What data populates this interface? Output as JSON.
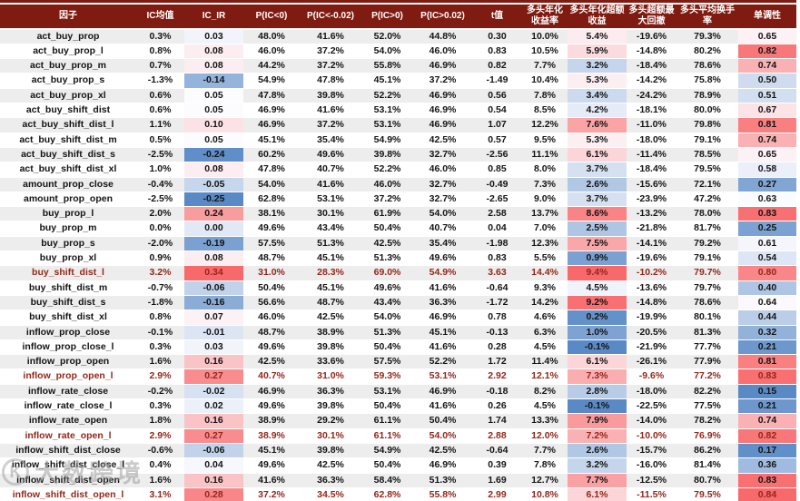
{
  "watermark": {
    "logo": "K",
    "text": "大数跨境"
  },
  "colors": {
    "header_bg": "#801b11",
    "header_text": "#ffffff",
    "stripe": "#ededed",
    "row_white": "#ffffff",
    "body_text": "#141414",
    "highlight_text": "#93261a",
    "scale_min_blue": "#5a8ac6",
    "scale_mid_white": "#fcfcff",
    "scale_max_red": "#f8696b"
  },
  "table": {
    "columns": [
      {
        "key": "factor",
        "label": "因子",
        "colorscale": false
      },
      {
        "key": "ic_mean",
        "label": "IC均值",
        "colorscale": false
      },
      {
        "key": "ic_ir",
        "label": "IC_IR",
        "colorscale": true
      },
      {
        "key": "p_ic_lt0",
        "label": "P(IC<0)",
        "colorscale": false
      },
      {
        "key": "p_ic_ltn002",
        "label": "P(IC<-0.02)",
        "colorscale": false
      },
      {
        "key": "p_ic_gt0",
        "label": "P(IC>0)",
        "colorscale": false
      },
      {
        "key": "p_ic_gt002",
        "label": "P(IC>0.02)",
        "colorscale": false
      },
      {
        "key": "t_value",
        "label": "t值",
        "colorscale": false
      },
      {
        "key": "long_annual_return",
        "label": "多头年化收益率",
        "colorscale": false
      },
      {
        "key": "long_annual_excess",
        "label": "多头年化超额收益",
        "colorscale": true
      },
      {
        "key": "long_excess_maxdd",
        "label": "多头超额最大回撤",
        "colorscale": false
      },
      {
        "key": "long_avg_turnover",
        "label": "多头平均换手率",
        "colorscale": false
      },
      {
        "key": "monotonicity",
        "label": "单调性",
        "colorscale": true
      }
    ],
    "rows": [
      {
        "highlight": false,
        "cells": [
          "act_buy_prop",
          "0.3%",
          "0.03",
          "48.0%",
          "41.6%",
          "52.0%",
          "44.8%",
          "0.30",
          "10.0%",
          "5.4%",
          "-19.6%",
          "79.3%",
          "0.65"
        ]
      },
      {
        "highlight": false,
        "cells": [
          "act_buy_prop_l",
          "0.8%",
          "0.08",
          "46.0%",
          "37.2%",
          "54.0%",
          "46.0%",
          "0.83",
          "10.5%",
          "5.9%",
          "-14.8%",
          "80.2%",
          "0.82"
        ]
      },
      {
        "highlight": false,
        "cells": [
          "act_buy_prop_m",
          "0.7%",
          "0.08",
          "44.2%",
          "37.2%",
          "55.8%",
          "46.9%",
          "0.82",
          "7.7%",
          "3.2%",
          "-18.4%",
          "78.6%",
          "0.74"
        ]
      },
      {
        "highlight": false,
        "cells": [
          "act_buy_prop_s",
          "-1.3%",
          "-0.14",
          "54.9%",
          "47.8%",
          "45.1%",
          "37.2%",
          "-1.49",
          "10.4%",
          "5.3%",
          "-14.2%",
          "75.8%",
          "0.50"
        ]
      },
      {
        "highlight": false,
        "cells": [
          "act_buy_prop_xl",
          "0.6%",
          "0.05",
          "47.8%",
          "39.8%",
          "52.2%",
          "46.9%",
          "0.56",
          "7.8%",
          "3.4%",
          "-24.2%",
          "78.9%",
          "0.51"
        ]
      },
      {
        "highlight": false,
        "cells": [
          "act_buy_shift_dist",
          "0.6%",
          "0.05",
          "46.9%",
          "41.6%",
          "53.1%",
          "46.9%",
          "0.54",
          "8.5%",
          "4.2%",
          "-18.1%",
          "80.0%",
          "0.67"
        ]
      },
      {
        "highlight": false,
        "cells": [
          "act_buy_shift_dist_l",
          "1.1%",
          "0.10",
          "46.9%",
          "37.2%",
          "53.1%",
          "46.9%",
          "1.07",
          "12.2%",
          "7.6%",
          "-11.0%",
          "79.8%",
          "0.81"
        ]
      },
      {
        "highlight": false,
        "cells": [
          "act_buy_shift_dist_m",
          "0.5%",
          "0.05",
          "45.1%",
          "35.4%",
          "54.9%",
          "42.5%",
          "0.57",
          "9.5%",
          "5.3%",
          "-18.0%",
          "79.1%",
          "0.74"
        ]
      },
      {
        "highlight": false,
        "cells": [
          "act_buy_shift_dist_s",
          "-2.5%",
          "-0.24",
          "60.2%",
          "49.6%",
          "39.8%",
          "32.7%",
          "-2.56",
          "11.1%",
          "6.1%",
          "-11.4%",
          "78.5%",
          "0.65"
        ]
      },
      {
        "highlight": false,
        "cells": [
          "act_buy_shift_dist_xl",
          "1.0%",
          "0.08",
          "47.8%",
          "40.7%",
          "52.2%",
          "46.0%",
          "0.85",
          "8.0%",
          "3.7%",
          "-18.4%",
          "79.5%",
          "0.58"
        ]
      },
      {
        "highlight": false,
        "cells": [
          "amount_prop_close",
          "-0.4%",
          "-0.05",
          "54.0%",
          "41.6%",
          "46.0%",
          "32.7%",
          "-0.49",
          "7.3%",
          "2.6%",
          "-15.6%",
          "72.1%",
          "0.27"
        ]
      },
      {
        "highlight": false,
        "cells": [
          "amount_prop_open",
          "-2.5%",
          "-0.25",
          "62.8%",
          "53.1%",
          "37.2%",
          "32.7%",
          "-2.65",
          "9.0%",
          "3.7%",
          "-23.9%",
          "47.2%",
          "0.63"
        ]
      },
      {
        "highlight": false,
        "cells": [
          "buy_prop_l",
          "2.0%",
          "0.24",
          "38.1%",
          "30.1%",
          "61.9%",
          "54.0%",
          "2.58",
          "13.7%",
          "8.6%",
          "-13.2%",
          "78.0%",
          "0.83"
        ]
      },
      {
        "highlight": false,
        "cells": [
          "buy_prop_m",
          "0.0%",
          "0.00",
          "49.6%",
          "43.4%",
          "50.4%",
          "40.7%",
          "0.04",
          "7.0%",
          "2.5%",
          "-21.8%",
          "81.7%",
          "0.25"
        ]
      },
      {
        "highlight": false,
        "cells": [
          "buy_prop_s",
          "-2.0%",
          "-0.19",
          "57.5%",
          "51.3%",
          "42.5%",
          "35.4%",
          "-1.98",
          "12.3%",
          "7.5%",
          "-14.1%",
          "79.2%",
          "0.61"
        ]
      },
      {
        "highlight": false,
        "cells": [
          "buy_prop_xl",
          "0.9%",
          "0.08",
          "48.7%",
          "45.1%",
          "51.3%",
          "49.6%",
          "0.83",
          "5.5%",
          "0.9%",
          "-19.6%",
          "79.1%",
          "0.54"
        ]
      },
      {
        "highlight": true,
        "cells": [
          "buy_shift_dist_l",
          "3.2%",
          "0.34",
          "31.0%",
          "28.3%",
          "69.0%",
          "54.9%",
          "3.63",
          "14.4%",
          "9.4%",
          "-10.2%",
          "79.7%",
          "0.80"
        ]
      },
      {
        "highlight": false,
        "cells": [
          "buy_shift_dist_m",
          "-0.7%",
          "-0.06",
          "50.4%",
          "45.1%",
          "49.6%",
          "41.6%",
          "-0.64",
          "9.3%",
          "4.5%",
          "-13.6%",
          "79.7%",
          "0.40"
        ]
      },
      {
        "highlight": false,
        "cells": [
          "buy_shift_dist_s",
          "-1.8%",
          "-0.16",
          "56.6%",
          "48.7%",
          "43.4%",
          "36.3%",
          "-1.72",
          "14.2%",
          "9.2%",
          "-14.8%",
          "78.6%",
          "0.64"
        ]
      },
      {
        "highlight": false,
        "cells": [
          "buy_shift_dist_xl",
          "0.8%",
          "0.07",
          "46.0%",
          "42.5%",
          "54.0%",
          "46.9%",
          "0.78",
          "4.6%",
          "0.2%",
          "-19.9%",
          "80.1%",
          "0.44"
        ]
      },
      {
        "highlight": false,
        "cells": [
          "inflow_prop_close",
          "-0.1%",
          "-0.01",
          "48.7%",
          "38.9%",
          "51.3%",
          "45.1%",
          "-0.13",
          "6.3%",
          "1.0%",
          "-20.5%",
          "81.3%",
          "0.32"
        ]
      },
      {
        "highlight": false,
        "cells": [
          "inflow_prop_close_l",
          "0.3%",
          "0.03",
          "49.6%",
          "39.8%",
          "50.4%",
          "41.6%",
          "0.28",
          "4.5%",
          "-0.1%",
          "-21.9%",
          "77.7%",
          "0.21"
        ]
      },
      {
        "highlight": false,
        "cells": [
          "inflow_prop_open",
          "1.6%",
          "0.16",
          "42.5%",
          "33.6%",
          "57.5%",
          "52.2%",
          "1.72",
          "11.4%",
          "6.1%",
          "-26.1%",
          "77.9%",
          "0.81"
        ]
      },
      {
        "highlight": true,
        "cells": [
          "inflow_prop_open_l",
          "2.9%",
          "0.27",
          "40.7%",
          "31.0%",
          "59.3%",
          "53.1%",
          "2.92",
          "12.1%",
          "7.3%",
          "-9.6%",
          "77.2%",
          "0.83"
        ]
      },
      {
        "highlight": false,
        "cells": [
          "inflow_rate_close",
          "-0.2%",
          "-0.02",
          "46.9%",
          "36.3%",
          "53.1%",
          "46.9%",
          "-0.18",
          "8.2%",
          "2.8%",
          "-18.0%",
          "82.2%",
          "0.15"
        ]
      },
      {
        "highlight": false,
        "cells": [
          "inflow_rate_close_l",
          "0.3%",
          "0.02",
          "49.6%",
          "39.8%",
          "50.4%",
          "41.6%",
          "0.26",
          "4.5%",
          "-0.1%",
          "-22.5%",
          "77.5%",
          "0.21"
        ]
      },
      {
        "highlight": false,
        "cells": [
          "inflow_rate_open",
          "1.8%",
          "0.16",
          "38.9%",
          "29.2%",
          "61.1%",
          "50.4%",
          "1.74",
          "13.3%",
          "7.9%",
          "-14.0%",
          "78.2%",
          "0.74"
        ]
      },
      {
        "highlight": true,
        "cells": [
          "inflow_rate_open_l",
          "2.9%",
          "0.27",
          "38.9%",
          "30.1%",
          "61.1%",
          "54.0%",
          "2.88",
          "12.0%",
          "7.2%",
          "-10.0%",
          "76.9%",
          "0.82"
        ]
      },
      {
        "highlight": false,
        "cells": [
          "inflow_shift_dist_close",
          "-0.6%",
          "-0.06",
          "45.1%",
          "39.8%",
          "54.9%",
          "42.5%",
          "-0.64",
          "7.7%",
          "2.6%",
          "-15.7%",
          "86.2%",
          "0.17"
        ]
      },
      {
        "highlight": false,
        "cells": [
          "inflow_shift_dist_close_l",
          "0.4%",
          "0.04",
          "49.6%",
          "42.5%",
          "50.4%",
          "46.9%",
          "0.39",
          "7.8%",
          "3.2%",
          "-16.0%",
          "81.4%",
          "0.36"
        ]
      },
      {
        "highlight": false,
        "cells": [
          "inflow_shift_dist_open",
          "1.6%",
          "0.16",
          "41.6%",
          "36.3%",
          "58.4%",
          "51.3%",
          "1.69",
          "12.7%",
          "7.7%",
          "-12.5%",
          "80.7%",
          "0.83"
        ]
      },
      {
        "highlight": true,
        "cells": [
          "inflow_shift_dist_open_l",
          "3.1%",
          "0.28",
          "37.2%",
          "34.5%",
          "62.8%",
          "55.8%",
          "2.99",
          "10.8%",
          "6.1%",
          "-11.5%",
          "79.5%",
          "0.84"
        ]
      }
    ]
  }
}
